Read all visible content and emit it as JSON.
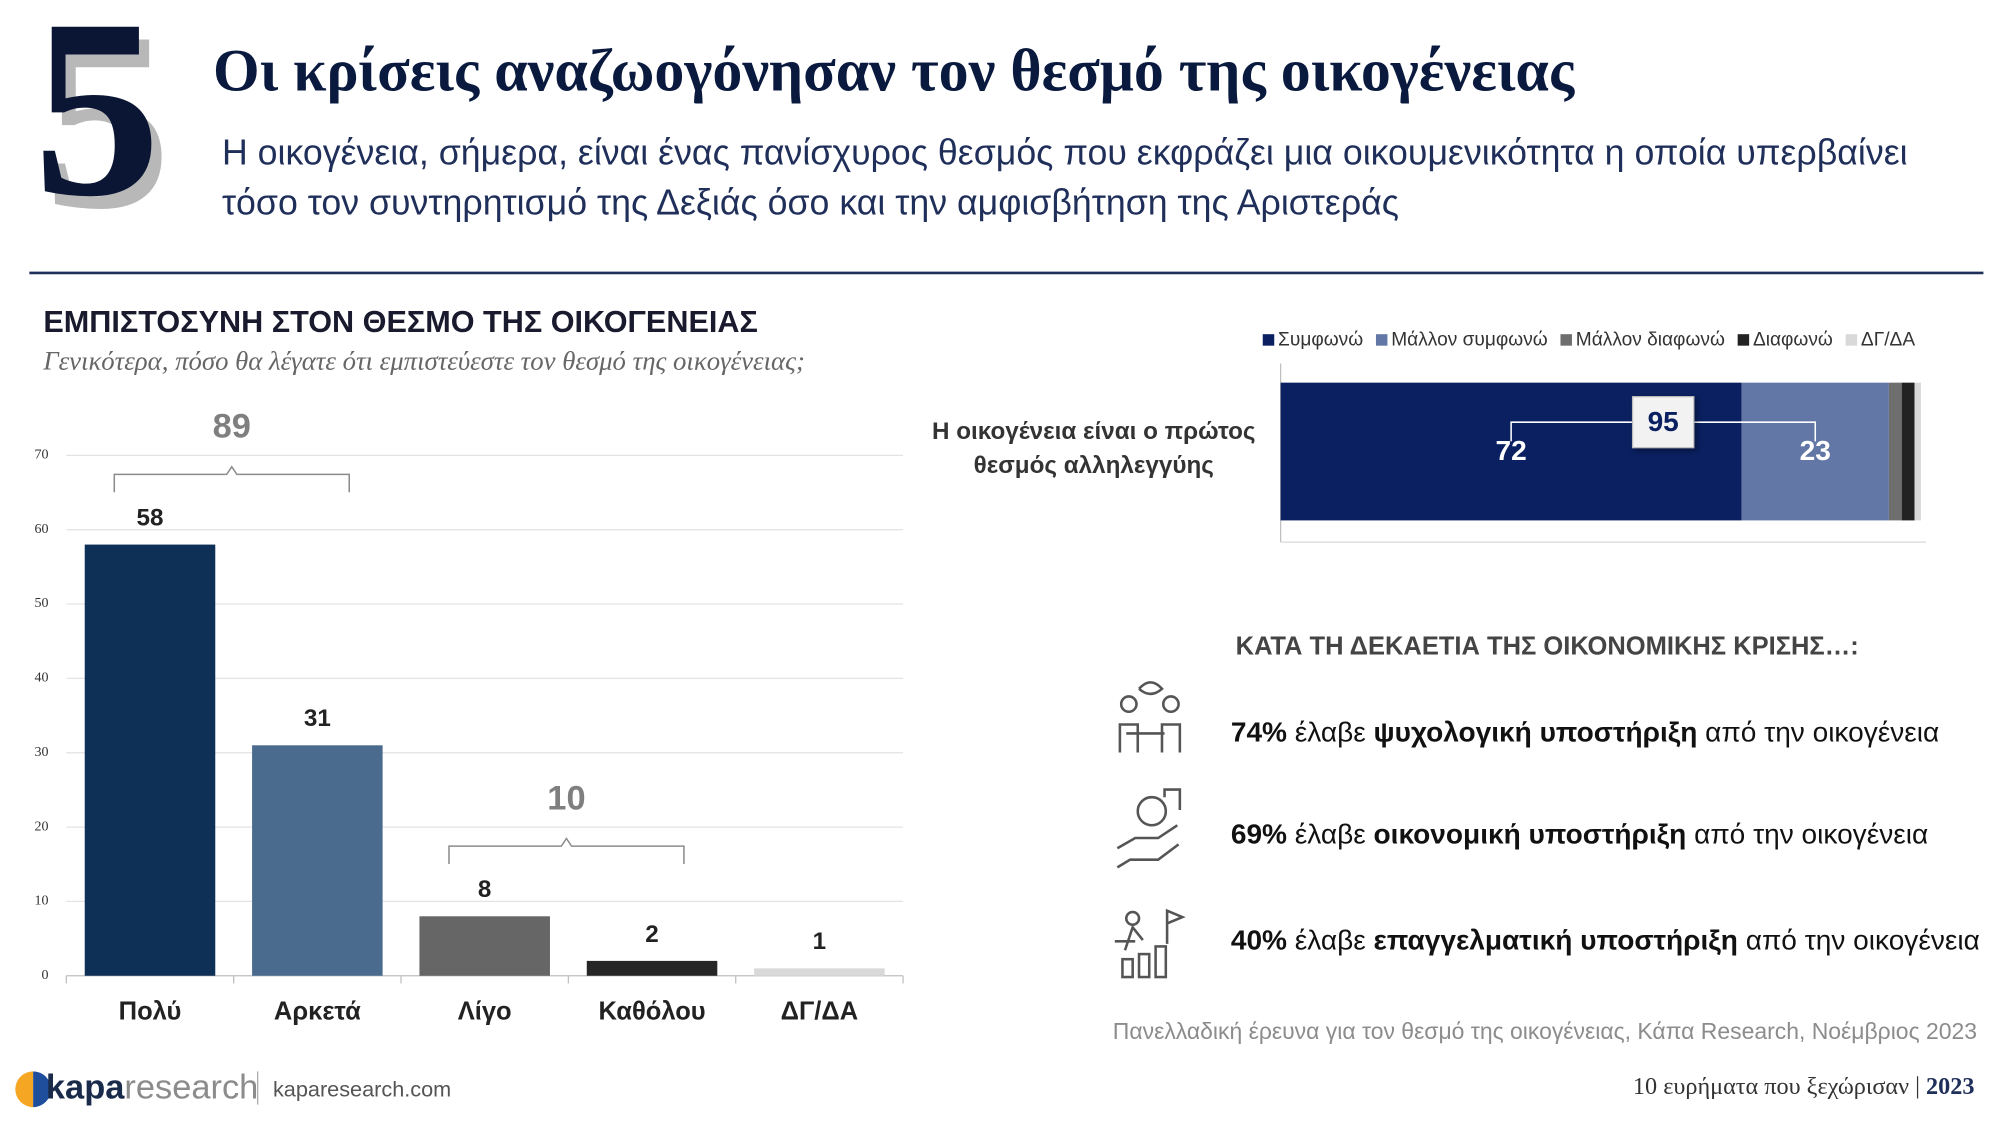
{
  "header": {
    "number": "5",
    "title": "Οι κρίσεις αναζωογόνησαν τον θεσμό της οικογένειας",
    "subtitle": "Η οικογένεια, σήμερα, είναι ένας πανίσχυρος θεσμός που εκφράζει μια οικουμενικότητα η οποία υπερβαίνει τόσο τον συντηρητισμό της Δεξιάς όσο και την αμφισβήτηση της Αριστεράς"
  },
  "chart_data": [
    {
      "type": "bar",
      "title": "ΕΜΠΙΣΤΟΣΥΝΗ ΣΤΟΝ ΘΕΣΜΟ ΤΗΣ ΟΙΚΟΓΕΝΕΙΑΣ",
      "subtitle": "Γενικότερα, πόσο θα λέγατε ότι εμπιστεύεστε τον θεσμό της οικογένειας;",
      "categories": [
        "Πολύ",
        "Αρκετά",
        "Λίγο",
        "Καθόλου",
        "ΔΓ/ΔΑ"
      ],
      "values": [
        58,
        31,
        8,
        2,
        1
      ],
      "colors": [
        "#0e3057",
        "#4a6a8e",
        "#666666",
        "#262626",
        "#d9d9d9"
      ],
      "ylim": [
        0,
        70
      ],
      "yticks": [
        0,
        10,
        20,
        30,
        40,
        50,
        60,
        70
      ],
      "grid": true,
      "group_totals": [
        {
          "value": 89,
          "categories": [
            "Πολύ",
            "Αρκετά"
          ]
        },
        {
          "value": 10,
          "categories": [
            "Λίγο",
            "Καθόλου"
          ]
        }
      ]
    },
    {
      "type": "stacked_bar",
      "categories": [
        "Η οικογένεια είναι ο πρώτος θεσμός αλληλεγγύης"
      ],
      "series": [
        {
          "name": "Συμφωνώ",
          "color": "#0a2060",
          "values": [
            72
          ],
          "labels": true
        },
        {
          "name": "Μάλλον συμφωνώ",
          "color": "#6277a6",
          "values": [
            23
          ],
          "labels": true
        },
        {
          "name": "Μάλλον διαφωνώ",
          "color": "#6e6e6e",
          "values": [
            2
          ],
          "labels": false
        },
        {
          "name": "Διαφωνώ",
          "color": "#222222",
          "values": [
            2
          ],
          "labels": false
        },
        {
          "name": "ΔΓ/ΔΑ",
          "color": "#d9d9d9",
          "values": [
            1
          ],
          "labels": false
        }
      ],
      "xlim": [
        0,
        100
      ],
      "total": {
        "value": 95,
        "series": [
          "Συμφωνώ",
          "Μάλλον συμφωνώ"
        ]
      },
      "legend": "top"
    }
  ],
  "findings": {
    "heading": "ΚΑΤΑ ΤΗ ΔΕΚΑΕΤΙΑ ΤΗΣ ΟΙΚΟΝΟΜΙΚΗΣ ΚΡΙΣΗΣ…:",
    "items": [
      {
        "percent": "74%",
        "verb": "έλαβε",
        "emphasis": "ψυχολογική υποστήριξη",
        "rest": "από την οικογένεια"
      },
      {
        "percent": "69%",
        "verb": "έλαβε",
        "emphasis": "οικονομική υποστήριξη",
        "rest": "από την οικογένεια"
      },
      {
        "percent": "40%",
        "verb": "έλαβε",
        "emphasis": "επαγγελματική υποστήριξη",
        "rest": "από την οικογένεια"
      }
    ]
  },
  "footer": {
    "source": "Πανελλαδική έρευνα για τον θεσμό της οικογένειας, Κάπα Research, Νοέμβριος 2023",
    "logo_brand": "kapa",
    "logo_suffix": "research",
    "url": "kaparesearch.com",
    "series_title": "10 ευρήματα που ξεχώρισαν",
    "year": "2023"
  }
}
